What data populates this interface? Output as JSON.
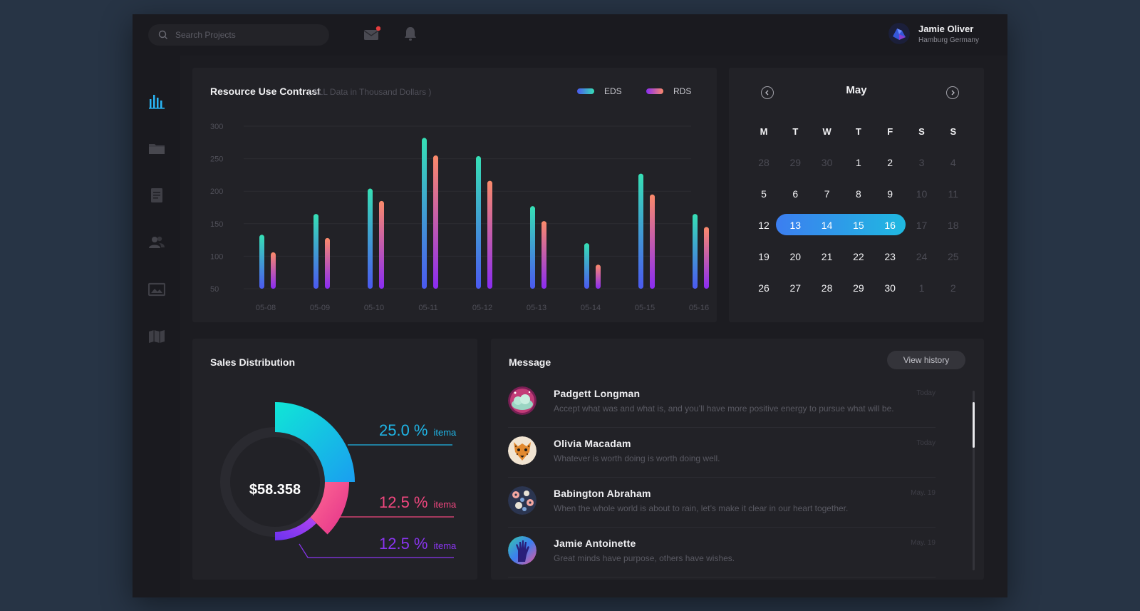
{
  "topbar": {
    "search_placeholder": "Search Projects",
    "user": {
      "name": "Jamie Oliver",
      "location": "Hamburg Germany"
    }
  },
  "sidebar": {
    "items": [
      {
        "icon": "bar-chart-icon",
        "active": true
      },
      {
        "icon": "folder-icon",
        "active": false
      },
      {
        "icon": "document-icon",
        "active": false
      },
      {
        "icon": "users-icon",
        "active": false
      },
      {
        "icon": "image-icon",
        "active": false
      },
      {
        "icon": "map-icon",
        "active": false
      }
    ]
  },
  "resource_chart": {
    "title": "Resource Use Contrast",
    "subtitle": "( ALL Data in Thousand Dollars )"
  },
  "chart_data": [
    {
      "type": "bar",
      "title": "Resource Use Contrast",
      "subtitle": "( ALL Data in Thousand Dollars )",
      "categories": [
        "05-08",
        "05-09",
        "05-10",
        "05-11",
        "05-12",
        "05-13",
        "05-14",
        "05-15",
        "05-16"
      ],
      "series": [
        {
          "name": "EDS",
          "values": [
            133,
            165,
            204,
            282,
            254,
            177,
            120,
            227,
            165
          ],
          "colors": [
            "#36e0b5",
            "#4b59f0"
          ]
        },
        {
          "name": "RDS",
          "values": [
            106,
            128,
            185,
            255,
            216,
            154,
            87,
            195,
            145
          ],
          "colors": [
            "#fb8a6a",
            "#8a2cf2"
          ]
        }
      ],
      "ylim": [
        50,
        300
      ],
      "yticks": [
        50,
        100,
        150,
        200,
        250,
        300
      ],
      "legend_position": "top-right",
      "grid": true
    },
    {
      "type": "pie",
      "title": "Sales Distribution",
      "total": "$58.358",
      "slices": [
        {
          "label": "itema",
          "percent": 25.0,
          "display": "25.0 %",
          "color": "#1fb5e6"
        },
        {
          "label": "itema",
          "percent": 12.5,
          "display": "12.5 %",
          "color": "#f1477f"
        },
        {
          "label": "itema",
          "percent": 12.5,
          "display": "12.5 %",
          "color": "#8a35f0"
        }
      ]
    }
  ],
  "calendar": {
    "month": "May",
    "weekdays": [
      "M",
      "T",
      "W",
      "T",
      "F",
      "S",
      "S"
    ],
    "weeks": [
      [
        {
          "d": "28",
          "muted": true
        },
        {
          "d": "29",
          "muted": true
        },
        {
          "d": "30",
          "muted": true
        },
        {
          "d": "1"
        },
        {
          "d": "2"
        },
        {
          "d": "3",
          "muted": true
        },
        {
          "d": "4",
          "muted": true
        }
      ],
      [
        {
          "d": "5"
        },
        {
          "d": "6"
        },
        {
          "d": "7"
        },
        {
          "d": "8"
        },
        {
          "d": "9"
        },
        {
          "d": "10",
          "muted": true
        },
        {
          "d": "11",
          "muted": true
        }
      ],
      [
        {
          "d": "12"
        },
        {
          "d": "13",
          "selected": true
        },
        {
          "d": "14",
          "selected": true
        },
        {
          "d": "15",
          "selected": true
        },
        {
          "d": "16",
          "selected": true
        },
        {
          "d": "17",
          "muted": true
        },
        {
          "d": "18",
          "muted": true
        }
      ],
      [
        {
          "d": "19"
        },
        {
          "d": "20"
        },
        {
          "d": "21"
        },
        {
          "d": "22"
        },
        {
          "d": "23"
        },
        {
          "d": "24",
          "muted": true
        },
        {
          "d": "25",
          "muted": true
        }
      ],
      [
        {
          "d": "26"
        },
        {
          "d": "27"
        },
        {
          "d": "28"
        },
        {
          "d": "29"
        },
        {
          "d": "30"
        },
        {
          "d": "1",
          "muted": true
        },
        {
          "d": "2",
          "muted": true
        }
      ]
    ],
    "selected_range": [
      "13",
      "16"
    ]
  },
  "sales": {
    "title": "Sales Distribution",
    "total": "$58.358",
    "items": [
      {
        "value": "25.0 %",
        "label": "itema",
        "color": "#1fb5e6"
      },
      {
        "value": "12.5 %",
        "label": "itema",
        "color": "#f1477f"
      },
      {
        "value": "12.5 %",
        "label": "itema",
        "color": "#8a35f0"
      }
    ]
  },
  "messages": {
    "title": "Message",
    "view_history": "View history",
    "items": [
      {
        "name": "Padgett  Longman",
        "text": "Accept what was and what is, and you’ll have more positive energy to pursue what will be.",
        "time": "Today",
        "avatar": "cloud-avatar"
      },
      {
        "name": "Olivia  Macadam",
        "text": "Whatever is worth doing is worth doing well.",
        "time": "Today",
        "avatar": "cheetah-avatar"
      },
      {
        "name": "Babington  Abraham",
        "text": "When the whole world is about to rain, let’s make it clear in our heart together.",
        "time": "May. 19",
        "avatar": "floral-avatar"
      },
      {
        "name": "Jamie Antoinette",
        "text": "Great minds have purpose, others have wishes.",
        "time": "May. 19",
        "avatar": "hand-avatar"
      }
    ]
  }
}
